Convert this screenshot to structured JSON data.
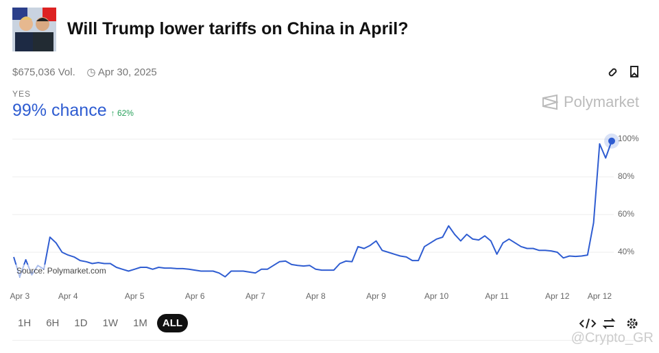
{
  "header": {
    "title": "Will Trump lower tariffs on China in April?",
    "volume": "$675,036 Vol.",
    "end_date": "Apr 30, 2025"
  },
  "outcome": {
    "label": "YES",
    "chance": "99% chance",
    "change": "62%"
  },
  "brand": "Polymarket",
  "source": "Source: Polymarket.com",
  "buttons": [
    "1H",
    "6H",
    "1D",
    "1W",
    "1M",
    "ALL"
  ],
  "watermark": "@Crypto_GR",
  "chart_data": {
    "type": "line",
    "color": "#2e5cd1",
    "categories": [
      null,
      "Apr 3",
      null,
      null,
      null,
      null,
      null,
      null,
      null,
      "Apr 4",
      null,
      null,
      null,
      null,
      null,
      null,
      null,
      null,
      null,
      null,
      "Apr 5",
      null,
      null,
      null,
      null,
      null,
      null,
      null,
      null,
      null,
      "Apr 6",
      null,
      null,
      null,
      null,
      null,
      null,
      null,
      null,
      null,
      "Apr 7",
      null,
      null,
      null,
      null,
      null,
      null,
      null,
      null,
      null,
      "Apr 8",
      null,
      null,
      null,
      null,
      null,
      null,
      null,
      null,
      null,
      "Apr 9",
      null,
      null,
      null,
      null,
      null,
      null,
      null,
      null,
      null,
      "Apr 10",
      null,
      null,
      null,
      null,
      null,
      null,
      null,
      null,
      null,
      "Apr 11",
      null,
      null,
      null,
      null,
      null,
      null,
      null,
      null,
      null,
      "Apr 12",
      null,
      null,
      null,
      null,
      null,
      null,
      "Apr 12",
      null,
      null
    ],
    "values": [
      37.5,
      27,
      36,
      28,
      33,
      31,
      48,
      45,
      40,
      38.5,
      37.5,
      35.6,
      35,
      34,
      34.5,
      34,
      34,
      32,
      31,
      30,
      31,
      32,
      32,
      31,
      32,
      31.6,
      31.6,
      31.3,
      31.3,
      31,
      30.5,
      30,
      30,
      30,
      29,
      27,
      30,
      30,
      30,
      29.5,
      29,
      31,
      31,
      33,
      35,
      35.3,
      33.5,
      33,
      32.7,
      33,
      31,
      30.5,
      30.5,
      30.5,
      34,
      35.3,
      35,
      43,
      42,
      43.6,
      46,
      41,
      40,
      39,
      38,
      37.5,
      35.6,
      35.6,
      43,
      45,
      47,
      48,
      54,
      49.5,
      46,
      49.5,
      47,
      46.5,
      48.7,
      46,
      39,
      45,
      47,
      45,
      43,
      42,
      42,
      41,
      41,
      40.7,
      40,
      37,
      38,
      37.8,
      38,
      38.5,
      55.6,
      97.5,
      90,
      99
    ],
    "ylim": [
      20,
      100
    ],
    "yticks": [
      {
        "value": 40,
        "label": "40%"
      },
      {
        "value": 60,
        "label": "60%"
      },
      {
        "value": 80,
        "label": "80%"
      },
      {
        "value": 100,
        "label": "100%"
      }
    ],
    "grid": true
  }
}
